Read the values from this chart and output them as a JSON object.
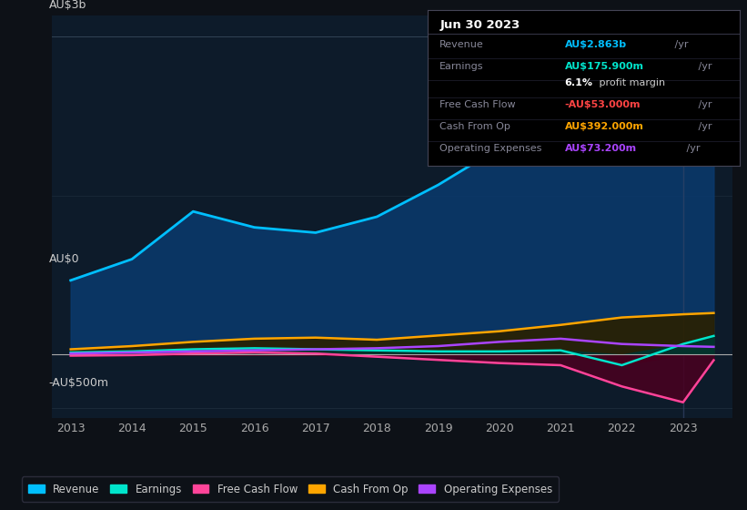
{
  "background_color": "#0d1117",
  "plot_bg_color": "#0d1b2a",
  "ylabel_top": "AU$3b",
  "ylabel_zero": "AU$0",
  "ylabel_neg": "-AU$500m",
  "years": [
    2013,
    2014,
    2015,
    2016,
    2017,
    2018,
    2019,
    2020,
    2021,
    2022,
    2023,
    2023.5
  ],
  "revenue": [
    700,
    900,
    1350,
    1200,
    1150,
    1300,
    1600,
    1950,
    2100,
    2050,
    2650,
    2863
  ],
  "earnings": [
    20,
    30,
    50,
    60,
    50,
    40,
    30,
    30,
    40,
    -100,
    100,
    176
  ],
  "free_cash_flow": [
    -10,
    -5,
    10,
    20,
    10,
    -20,
    -50,
    -80,
    -100,
    -300,
    -450,
    -53
  ],
  "cash_from_op": [
    50,
    80,
    120,
    150,
    160,
    140,
    180,
    220,
    280,
    350,
    380,
    392
  ],
  "op_expenses": [
    10,
    20,
    30,
    40,
    50,
    60,
    80,
    120,
    150,
    100,
    80,
    73
  ],
  "revenue_color": "#00bfff",
  "earnings_color": "#00e5cc",
  "free_cash_flow_color": "#ff4499",
  "cash_from_op_color": "#ffa500",
  "op_expenses_color": "#aa44ff",
  "revenue_fill_color": "#0a3a6e",
  "ylim": [
    -600,
    3200
  ],
  "info_box": {
    "title": "Jun 30 2023",
    "rows": [
      {
        "label": "Revenue",
        "value": "AU$2.863b",
        "suffix": " /yr",
        "value_color": "#00bfff"
      },
      {
        "label": "Earnings",
        "value": "AU$175.900m",
        "suffix": " /yr",
        "value_color": "#00e5cc"
      },
      {
        "label": "",
        "value": "6.1%",
        "suffix": " profit margin",
        "value_color": "#ffffff",
        "bold_part": true
      },
      {
        "label": "Free Cash Flow",
        "value": "-AU$53.000m",
        "suffix": " /yr",
        "value_color": "#ff4444"
      },
      {
        "label": "Cash From Op",
        "value": "AU$392.000m",
        "suffix": " /yr",
        "value_color": "#ffa500"
      },
      {
        "label": "Operating Expenses",
        "value": "AU$73.200m",
        "suffix": " /yr",
        "value_color": "#aa44ff"
      }
    ]
  },
  "legend_items": [
    {
      "label": "Revenue",
      "color": "#00bfff"
    },
    {
      "label": "Earnings",
      "color": "#00e5cc"
    },
    {
      "label": "Free Cash Flow",
      "color": "#ff4499"
    },
    {
      "label": "Cash From Op",
      "color": "#ffa500"
    },
    {
      "label": "Operating Expenses",
      "color": "#aa44ff"
    }
  ]
}
